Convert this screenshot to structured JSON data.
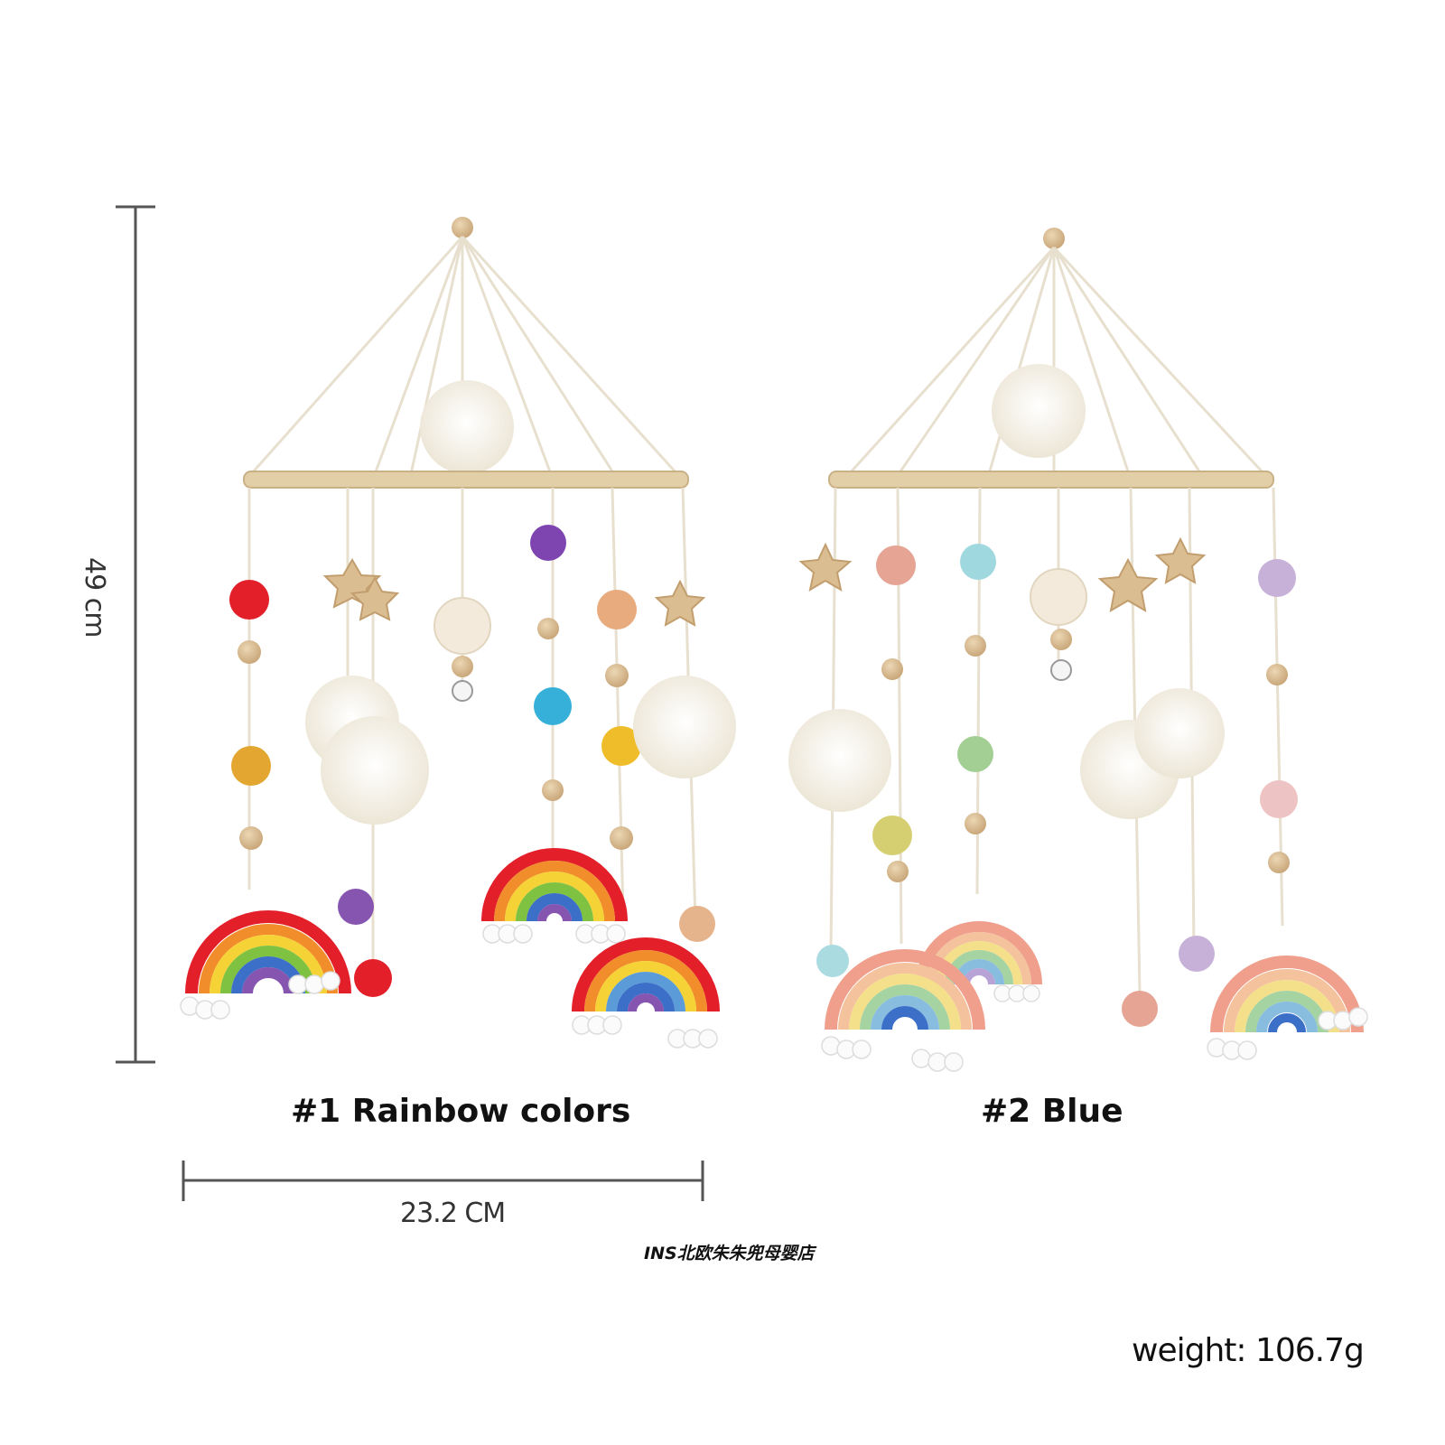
{
  "dimensions": {
    "height_label": "49 cm",
    "width_label": "23.2 CM"
  },
  "variants": [
    {
      "label": "#1 Rainbow colors"
    },
    {
      "label": "#2 Blue"
    }
  ],
  "shop_watermark": "INS北欧朱朱兜母婴店",
  "weight_label": "weight: 106.7g",
  "colors": {
    "wood": "#d9c09a",
    "hoop": "#e2cfa8",
    "pompom": "#f4efe2",
    "string": "#e8e0cf",
    "cloud": "#fbfbfb",
    "measure_line": "#555555"
  }
}
